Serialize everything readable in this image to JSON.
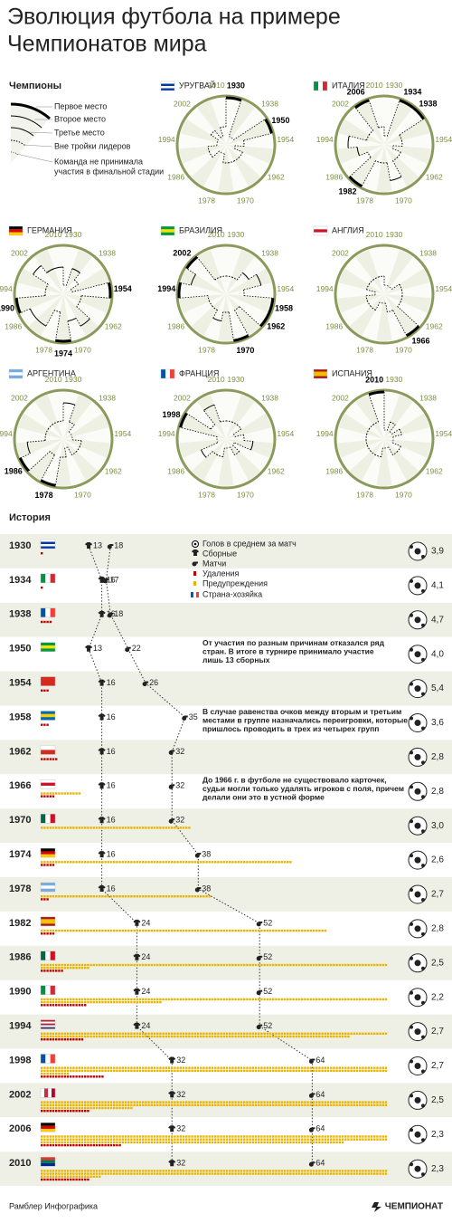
{
  "title": [
    "Эволюция футбола на примере",
    "Чемпионатов мира"
  ],
  "champions": {
    "heading": "Чемпионы",
    "legend": [
      [
        "Первое место"
      ],
      [
        "Второе место"
      ],
      [
        "Третье место"
      ],
      [
        "Вне тройки лидеров"
      ],
      [
        "Команда не принимала",
        "участия в финальной стадии"
      ]
    ],
    "year_labels": [
      1930,
      1938,
      1954,
      1962,
      1970,
      1978,
      1986,
      1994,
      2002,
      2010
    ],
    "countries": [
      {
        "name": "УРУГВАЙ",
        "flag": {
          "dir": "h",
          "colors": [
            "#ffffff",
            "#0038a8",
            "#ffffff",
            "#0038a8"
          ]
        },
        "titles": [
          1930,
          1950
        ],
        "places": [
          1,
          null,
          null,
          1,
          4,
          null,
          4,
          4,
          4,
          4,
          null,
          null,
          4,
          4,
          null,
          null,
          4,
          null,
          4
        ]
      },
      {
        "name": "ИТАЛИЯ",
        "flag": {
          "dir": "v",
          "colors": [
            "#009246",
            "#ffffff",
            "#ce2b37"
          ]
        },
        "titles": [
          1934,
          1938,
          1982,
          2006
        ],
        "places": [
          null,
          1,
          1,
          4,
          4,
          null,
          4,
          4,
          2,
          4,
          4,
          1,
          4,
          3,
          2,
          4,
          4,
          1,
          4
        ]
      },
      {
        "name": "ГЕРМАНИЯ",
        "flag": {
          "dir": "h",
          "colors": [
            "#000000",
            "#dd0000",
            "#ffce00"
          ]
        },
        "titles": [
          1954,
          1974,
          1990
        ],
        "places": [
          null,
          3,
          4,
          null,
          1,
          4,
          4,
          2,
          3,
          1,
          4,
          2,
          2,
          1,
          4,
          4,
          2,
          3,
          3
        ]
      },
      {
        "name": "БРАЗИЛИЯ",
        "flag": {
          "dir": "h",
          "colors": [
            "#009c3b",
            "#ffdf00",
            "#009c3b"
          ]
        },
        "titles": [
          1958,
          1962,
          1970,
          1994,
          2002
        ],
        "places": [
          4,
          4,
          3,
          2,
          4,
          1,
          1,
          4,
          1,
          4,
          3,
          4,
          4,
          4,
          1,
          2,
          1,
          4,
          4
        ]
      },
      {
        "name": "АНГЛИЯ",
        "flag": {
          "dir": "h",
          "colors": [
            "#ffffff",
            "#ce1124",
            "#ffffff"
          ]
        },
        "titles": [
          1966
        ],
        "places": [
          null,
          null,
          null,
          4,
          4,
          4,
          4,
          1,
          4,
          null,
          null,
          4,
          4,
          4,
          null,
          4,
          4,
          4,
          4
        ]
      },
      {
        "name": "АРГЕНТИНА",
        "flag": {
          "dir": "h",
          "colors": [
            "#74acdf",
            "#ffffff",
            "#74acdf"
          ]
        },
        "titles": [
          1978,
          1986
        ],
        "places": [
          2,
          4,
          null,
          null,
          null,
          4,
          4,
          4,
          null,
          4,
          1,
          4,
          1,
          2,
          4,
          4,
          4,
          4,
          4
        ]
      },
      {
        "name": "ФРАНЦИЯ",
        "flag": {
          "dir": "v",
          "colors": [
            "#0055a4",
            "#ffffff",
            "#ef4135"
          ]
        },
        "titles": [
          1998
        ],
        "places": [
          4,
          4,
          4,
          null,
          4,
          3,
          null,
          4,
          null,
          null,
          4,
          4,
          3,
          null,
          null,
          1,
          4,
          2,
          4
        ]
      },
      {
        "name": "ИСПАНИЯ",
        "flag": {
          "dir": "h",
          "colors": [
            "#aa151b",
            "#f1bf00",
            "#f1bf00",
            "#aa151b"
          ]
        },
        "titles": [
          2010
        ],
        "places": [
          null,
          4,
          null,
          4,
          null,
          null,
          4,
          4,
          null,
          null,
          4,
          4,
          4,
          4,
          4,
          4,
          4,
          4,
          1
        ]
      }
    ]
  },
  "history": {
    "heading": "История",
    "legend": [
      "Голов в среднем за матч",
      "Сборные",
      "Матчи",
      "Удаления",
      "Предупреждения",
      "Страна-хозяйка"
    ],
    "years": [
      1930,
      1934,
      1938,
      1950,
      1954,
      1958,
      1962,
      1966,
      1970,
      1974,
      1978,
      1982,
      1986,
      1990,
      1994,
      1998,
      2002,
      2006,
      2010
    ],
    "flags": [
      {
        "dir": "h",
        "colors": [
          "#ffffff",
          "#0038a8",
          "#ffffff",
          "#0038a8"
        ]
      },
      {
        "dir": "v",
        "colors": [
          "#009246",
          "#ffffff",
          "#ce2b37"
        ]
      },
      {
        "dir": "v",
        "colors": [
          "#0055a4",
          "#ffffff",
          "#ef4135"
        ]
      },
      {
        "dir": "h",
        "colors": [
          "#009c3b",
          "#ffdf00",
          "#009c3b"
        ]
      },
      {
        "dir": "h",
        "colors": [
          "#d52b1e"
        ]
      },
      {
        "dir": "h",
        "colors": [
          "#006aa7",
          "#fecc00",
          "#006aa7"
        ]
      },
      {
        "dir": "h",
        "colors": [
          "#ffffff",
          "#d52b1e"
        ]
      },
      {
        "dir": "h",
        "colors": [
          "#ffffff",
          "#ce1124",
          "#ffffff"
        ]
      },
      {
        "dir": "v",
        "colors": [
          "#006847",
          "#ffffff",
          "#ce1126"
        ]
      },
      {
        "dir": "h",
        "colors": [
          "#000000",
          "#dd0000",
          "#ffce00"
        ]
      },
      {
        "dir": "h",
        "colors": [
          "#74acdf",
          "#ffffff",
          "#74acdf"
        ]
      },
      {
        "dir": "h",
        "colors": [
          "#aa151b",
          "#f1bf00",
          "#f1bf00",
          "#aa151b"
        ]
      },
      {
        "dir": "v",
        "colors": [
          "#006847",
          "#ffffff",
          "#ce1126"
        ]
      },
      {
        "dir": "v",
        "colors": [
          "#009246",
          "#ffffff",
          "#ce2b37"
        ]
      },
      {
        "dir": "h",
        "colors": [
          "#b22234",
          "#ffffff",
          "#b22234",
          "#ffffff",
          "#3c3b6e"
        ]
      },
      {
        "dir": "v",
        "colors": [
          "#0055a4",
          "#ffffff",
          "#ef4135"
        ]
      },
      {
        "dir": "v",
        "colors": [
          "#ffffff",
          "#cd2e3a",
          "#ffffff",
          "#bc002d"
        ]
      },
      {
        "dir": "h",
        "colors": [
          "#000000",
          "#dd0000",
          "#ffce00"
        ]
      },
      {
        "dir": "h",
        "colors": [
          "#de3831",
          "#007a4d",
          "#002395"
        ]
      }
    ],
    "teams": [
      13,
      16,
      16,
      13,
      16,
      16,
      16,
      16,
      16,
      16,
      16,
      24,
      24,
      24,
      24,
      32,
      32,
      32,
      32
    ],
    "matches": [
      18,
      17,
      18,
      22,
      26,
      35,
      32,
      32,
      32,
      38,
      38,
      52,
      52,
      52,
      52,
      64,
      64,
      64,
      64
    ],
    "goals": [
      3.9,
      4.1,
      4.7,
      4.0,
      5.4,
      3.6,
      2.8,
      2.8,
      3.0,
      2.6,
      2.7,
      2.8,
      2.5,
      2.2,
      2.7,
      2.7,
      2.5,
      2.3,
      2.3
    ],
    "goals_labels": [
      "3,9",
      "4,1",
      "4,7",
      "4,0",
      "5,4",
      "3,6",
      "2,8",
      "2,8",
      "3,0",
      "2,6",
      "2,7",
      "2,8",
      "2,5",
      "2,2",
      "2,7",
      "2,7",
      "2,5",
      "2,3",
      "2,3"
    ],
    "red_cards": [
      1,
      1,
      4,
      0,
      3,
      3,
      6,
      5,
      0,
      5,
      3,
      5,
      8,
      16,
      15,
      22,
      17,
      28,
      17
    ],
    "yellow_cards": [
      null,
      null,
      null,
      null,
      null,
      null,
      null,
      14,
      52,
      87,
      59,
      99,
      137,
      162,
      227,
      250,
      272,
      345,
      261
    ],
    "notes": [
      null,
      null,
      null,
      [
        "От участия по разным причинам отказался ряд",
        "стран. В итоге в турнире принимало участие",
        "лишь 13 сборных"
      ],
      null,
      [
        "В случае равенства очков между вторым и третьим",
        "местами в группе назначались переигровки, которые",
        "пришлось проводить в трех из четырех групп"
      ],
      null,
      [
        "До 1966 г. в футболе не существовало карточек,",
        "судьи могли только удалять игроков с поля, причем",
        "делали они это в устной форме"
      ],
      null,
      null,
      null,
      null,
      null,
      null,
      null,
      null,
      null,
      null,
      null
    ]
  },
  "footer": {
    "source": "Рамблер Инфографика",
    "brand": "ЧЕМПИОНАТ"
  }
}
